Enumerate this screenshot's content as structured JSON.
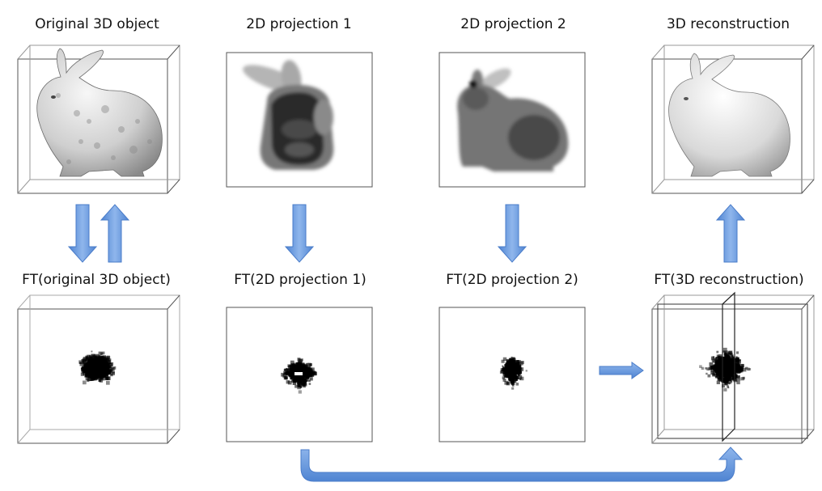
{
  "labels": {
    "original_3d": "Original 3D object",
    "projection_1": "2D projection 1",
    "projection_2": "2D projection 2",
    "reconstruction_3d": "3D reconstruction",
    "ft_original_3d": "FT(original 3D object)",
    "ft_projection_1": "FT(2D projection 1)",
    "ft_projection_2": "FT(2D projection 2)",
    "ft_reconstruction_3d": "FT(3D reconstruction)"
  },
  "colors": {
    "arrow_fill": "#6d9ee0",
    "arrow_stroke": "#4a7cc9",
    "box_line": "#555555",
    "bunny_light": "#e4e4e4",
    "bunny_dark": "#7a7a7a"
  }
}
